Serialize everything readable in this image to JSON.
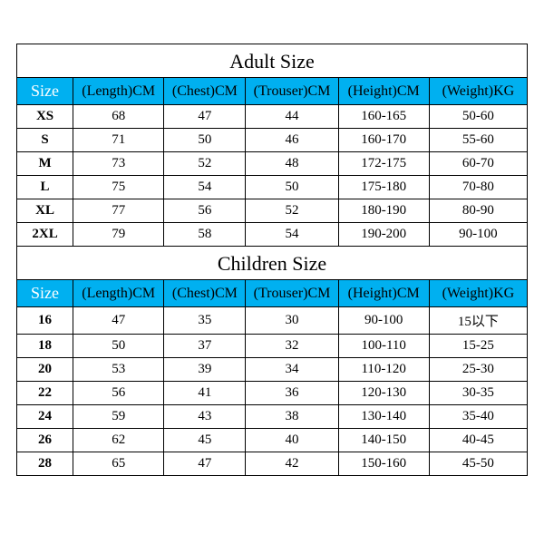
{
  "colors": {
    "header_bg": "#00b0f0",
    "border": "#000000",
    "size_header_text": "#ffffff",
    "header_text": "#000000",
    "cell_bg": "#ffffff"
  },
  "columns": [
    {
      "key": "size",
      "label": "Size"
    },
    {
      "key": "length",
      "label": "(Length)CM"
    },
    {
      "key": "chest",
      "label": "(Chest)CM"
    },
    {
      "key": "trouser",
      "label": "(Trouser)CM"
    },
    {
      "key": "height",
      "label": "(Height)CM"
    },
    {
      "key": "weight",
      "label": "(Weight)KG"
    }
  ],
  "sections": [
    {
      "title": "Adult Size",
      "rows": [
        {
          "size": "XS",
          "length": "68",
          "chest": "47",
          "trouser": "44",
          "height": "160-165",
          "weight": "50-60"
        },
        {
          "size": "S",
          "length": "71",
          "chest": "50",
          "trouser": "46",
          "height": "160-170",
          "weight": "55-60"
        },
        {
          "size": "M",
          "length": "73",
          "chest": "52",
          "trouser": "48",
          "height": "172-175",
          "weight": "60-70"
        },
        {
          "size": "L",
          "length": "75",
          "chest": "54",
          "trouser": "50",
          "height": "175-180",
          "weight": "70-80"
        },
        {
          "size": "XL",
          "length": "77",
          "chest": "56",
          "trouser": "52",
          "height": "180-190",
          "weight": "80-90"
        },
        {
          "size": "2XL",
          "length": "79",
          "chest": "58",
          "trouser": "54",
          "height": "190-200",
          "weight": "90-100"
        }
      ]
    },
    {
      "title": "Children Size",
      "rows": [
        {
          "size": "16",
          "length": "47",
          "chest": "35",
          "trouser": "30",
          "height": "90-100",
          "weight": "15以下"
        },
        {
          "size": "18",
          "length": "50",
          "chest": "37",
          "trouser": "32",
          "height": "100-110",
          "weight": "15-25"
        },
        {
          "size": "20",
          "length": "53",
          "chest": "39",
          "trouser": "34",
          "height": "110-120",
          "weight": "25-30"
        },
        {
          "size": "22",
          "length": "56",
          "chest": "41",
          "trouser": "36",
          "height": "120-130",
          "weight": "30-35"
        },
        {
          "size": "24",
          "length": "59",
          "chest": "43",
          "trouser": "38",
          "height": "130-140",
          "weight": "35-40"
        },
        {
          "size": "26",
          "length": "62",
          "chest": "45",
          "trouser": "40",
          "height": "140-150",
          "weight": "40-45"
        },
        {
          "size": "28",
          "length": "65",
          "chest": "47",
          "trouser": "42",
          "height": "150-160",
          "weight": "45-50"
        }
      ]
    }
  ]
}
